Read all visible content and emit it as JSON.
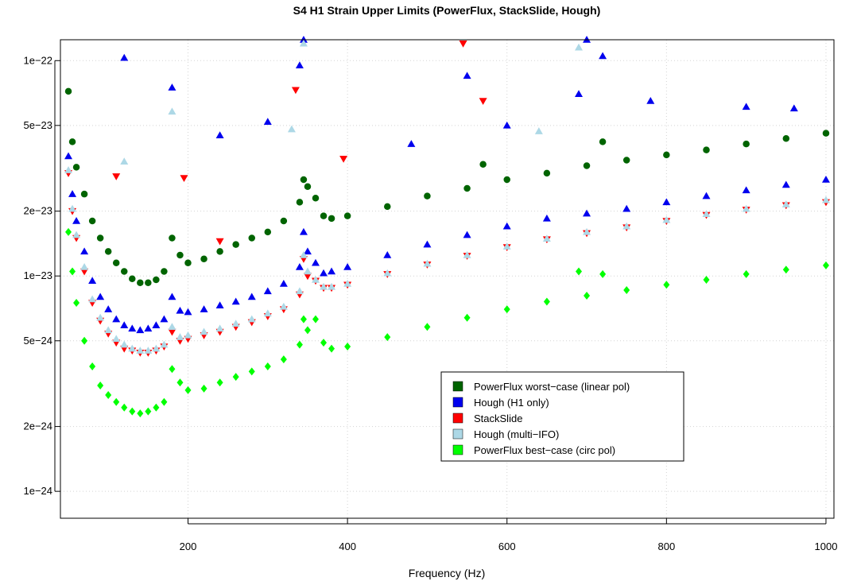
{
  "chart_data": {
    "type": "scatter",
    "title": "S4 H1 Strain Upper Limits (PowerFlux, StackSlide, Hough)",
    "xlabel": "Frequency (Hz)",
    "ylabel": "",
    "xlim": [
      40,
      1010
    ],
    "ylim": [
      7.5e-25,
      1.25e-22
    ],
    "yscale": "log",
    "grid": true,
    "legend_position": "center-right",
    "x_ticks": [
      200,
      400,
      600,
      800,
      1000
    ],
    "x_tick_labels": [
      "200",
      "400",
      "600",
      "800",
      "1000"
    ],
    "y_ticks": [
      1e-24,
      2e-24,
      5e-24,
      1e-23,
      2e-23,
      5e-23,
      1e-22
    ],
    "y_tick_labels": [
      "1e−24",
      "2e−24",
      "5e−24",
      "1e−23",
      "2e−23",
      "5e−23",
      "1e−22"
    ],
    "series": [
      {
        "name": "PowerFlux worst−case (linear pol)",
        "color": "#006400",
        "marker": "circle",
        "x": [
          50,
          55,
          60,
          70,
          80,
          90,
          100,
          110,
          120,
          130,
          140,
          150,
          160,
          170,
          180,
          190,
          200,
          220,
          240,
          260,
          280,
          300,
          320,
          340,
          345,
          350,
          360,
          370,
          380,
          400,
          450,
          500,
          550,
          600,
          650,
          700,
          750,
          800,
          850,
          900,
          950,
          1000
        ],
        "y": [
          7.2e-23,
          4.2e-23,
          3.2e-23,
          2.4e-23,
          1.8e-23,
          1.5e-23,
          1.3e-23,
          1.15e-23,
          1.05e-23,
          9.7e-24,
          9.3e-24,
          9.3e-24,
          9.6e-24,
          1.05e-23,
          1.5e-23,
          1.25e-23,
          1.15e-23,
          1.2e-23,
          1.3e-23,
          1.4e-23,
          1.5e-23,
          1.6e-23,
          1.8e-23,
          2.2e-23,
          2.8e-23,
          2.6e-23,
          2.3e-23,
          1.9e-23,
          1.85e-23,
          1.9e-23,
          2.1e-23,
          2.35e-23,
          2.55e-23,
          2.8e-23,
          3e-23,
          3.25e-23,
          3.45e-23,
          3.65e-23,
          3.85e-23,
          4.1e-23,
          4.35e-23,
          4.6e-23
        ]
      },
      {
        "name": "Hough (H1 only)",
        "color": "#0000ee",
        "marker": "triangle",
        "x": [
          50,
          55,
          60,
          70,
          80,
          90,
          100,
          110,
          120,
          130,
          140,
          150,
          160,
          170,
          180,
          190,
          200,
          220,
          240,
          260,
          280,
          300,
          320,
          340,
          345,
          350,
          360,
          370,
          380,
          400,
          450,
          500,
          550,
          600,
          650,
          700,
          750,
          800,
          850,
          900,
          950,
          1000
        ],
        "y": [
          3.6e-23,
          2.4e-23,
          1.8e-23,
          1.3e-23,
          9.5e-24,
          8e-24,
          7e-24,
          6.3e-24,
          5.9e-24,
          5.7e-24,
          5.6e-24,
          5.7e-24,
          5.9e-24,
          6.3e-24,
          8e-24,
          6.9e-24,
          6.8e-24,
          7e-24,
          7.3e-24,
          7.6e-24,
          8e-24,
          8.5e-24,
          9.2e-24,
          1.1e-23,
          1.6e-23,
          1.3e-23,
          1.15e-23,
          1.03e-23,
          1.05e-23,
          1.1e-23,
          1.25e-23,
          1.4e-23,
          1.55e-23,
          1.7e-23,
          1.85e-23,
          1.95e-23,
          2.05e-23,
          2.2e-23,
          2.35e-23,
          2.5e-23,
          2.65e-23,
          2.8e-23
        ]
      },
      {
        "name": "StackSlide",
        "color": "#ff0000",
        "marker": "triangle-down",
        "x": [
          50,
          55,
          60,
          70,
          80,
          90,
          100,
          110,
          120,
          130,
          140,
          150,
          160,
          170,
          180,
          190,
          200,
          220,
          240,
          260,
          280,
          300,
          320,
          340,
          345,
          350,
          360,
          370,
          380,
          400,
          450,
          500,
          550,
          600,
          650,
          700,
          750,
          800,
          850,
          900,
          950,
          1000
        ],
        "y": [
          3e-23,
          2e-23,
          1.5e-23,
          1.05e-23,
          7.5e-24,
          6.2e-24,
          5.4e-24,
          4.9e-24,
          4.6e-24,
          4.5e-24,
          4.4e-24,
          4.4e-24,
          4.5e-24,
          4.7e-24,
          5.5e-24,
          5e-24,
          5.1e-24,
          5.3e-24,
          5.5e-24,
          5.8e-24,
          6.1e-24,
          6.5e-24,
          7e-24,
          8.2e-24,
          1.2e-23,
          1e-23,
          9.5e-24,
          8.8e-24,
          8.8e-24,
          9.1e-24,
          1.02e-23,
          1.13e-23,
          1.24e-23,
          1.36e-23,
          1.48e-23,
          1.58e-23,
          1.68e-23,
          1.8e-23,
          1.92e-23,
          2.03e-23,
          2.13e-23,
          2.2e-23
        ]
      },
      {
        "name": "Hough (multi−IFO)",
        "color": "#add8e6",
        "marker": "triangle",
        "x": [
          50,
          55,
          60,
          70,
          80,
          90,
          100,
          110,
          120,
          130,
          140,
          150,
          160,
          170,
          180,
          190,
          200,
          220,
          240,
          260,
          280,
          300,
          320,
          340,
          345,
          350,
          360,
          370,
          380,
          400,
          450,
          500,
          550,
          600,
          650,
          700,
          750,
          800,
          850,
          900,
          950,
          1000
        ],
        "y": [
          3.1e-23,
          2.05e-23,
          1.55e-23,
          1.1e-23,
          7.8e-24,
          6.4e-24,
          5.6e-24,
          5.1e-24,
          4.8e-24,
          4.6e-24,
          4.5e-24,
          4.5e-24,
          4.6e-24,
          4.8e-24,
          5.8e-24,
          5.2e-24,
          5.3e-24,
          5.5e-24,
          5.7e-24,
          6e-24,
          6.3e-24,
          6.7e-24,
          7.2e-24,
          8.5e-24,
          1.25e-23,
          1.05e-23,
          9.6e-24,
          8.9e-24,
          8.9e-24,
          9.2e-24,
          1.03e-23,
          1.14e-23,
          1.25e-23,
          1.37e-23,
          1.49e-23,
          1.6e-23,
          1.7e-23,
          1.82e-23,
          1.94e-23,
          2.05e-23,
          2.15e-23,
          2.25e-23
        ]
      },
      {
        "name": "PowerFlux best−case (circ pol)",
        "color": "#00ff00",
        "marker": "diamond",
        "x": [
          50,
          55,
          60,
          70,
          80,
          90,
          100,
          110,
          120,
          130,
          140,
          150,
          160,
          170,
          180,
          190,
          200,
          220,
          240,
          260,
          280,
          300,
          320,
          340,
          345,
          350,
          360,
          370,
          380,
          400,
          450,
          500,
          550,
          600,
          650,
          700,
          750,
          800,
          850,
          900,
          950,
          1000
        ],
        "y": [
          1.6e-23,
          1.05e-23,
          7.5e-24,
          5e-24,
          3.8e-24,
          3.1e-24,
          2.8e-24,
          2.6e-24,
          2.45e-24,
          2.35e-24,
          2.3e-24,
          2.35e-24,
          2.45e-24,
          2.6e-24,
          3.7e-24,
          3.2e-24,
          2.95e-24,
          3e-24,
          3.2e-24,
          3.4e-24,
          3.6e-24,
          3.8e-24,
          4.1e-24,
          4.8e-24,
          6.3e-24,
          5.6e-24,
          6.3e-24,
          4.9e-24,
          4.6e-24,
          4.7e-24,
          5.2e-24,
          5.8e-24,
          6.4e-24,
          7e-24,
          7.6e-24,
          8.1e-24,
          8.6e-24,
          9.1e-24,
          9.6e-24,
          1.02e-23,
          1.07e-23,
          1.12e-23
        ]
      }
    ],
    "outliers": [
      {
        "series": 1,
        "x": 120,
        "y": 1.03e-22
      },
      {
        "series": 1,
        "x": 180,
        "y": 7.5e-23
      },
      {
        "series": 1,
        "x": 240,
        "y": 4.5e-23
      },
      {
        "series": 1,
        "x": 300,
        "y": 5.2e-23
      },
      {
        "series": 1,
        "x": 340,
        "y": 9.5e-23
      },
      {
        "series": 1,
        "x": 345,
        "y": 1.25e-22
      },
      {
        "series": 1,
        "x": 550,
        "y": 8.5e-23
      },
      {
        "series": 1,
        "x": 600,
        "y": 5e-23
      },
      {
        "series": 1,
        "x": 690,
        "y": 7e-23
      },
      {
        "series": 1,
        "x": 700,
        "y": 1.25e-22
      },
      {
        "series": 1,
        "x": 720,
        "y": 1.05e-22
      },
      {
        "series": 1,
        "x": 780,
        "y": 6.5e-23
      },
      {
        "series": 1,
        "x": 900,
        "y": 6.1e-23
      },
      {
        "series": 1,
        "x": 960,
        "y": 6e-23
      },
      {
        "series": 1,
        "x": 480,
        "y": 4.1e-23
      },
      {
        "series": 2,
        "x": 110,
        "y": 2.9e-23
      },
      {
        "series": 2,
        "x": 195,
        "y": 2.85e-23
      },
      {
        "series": 2,
        "x": 335,
        "y": 7.3e-23
      },
      {
        "series": 2,
        "x": 395,
        "y": 3.5e-23
      },
      {
        "series": 2,
        "x": 545,
        "y": 1.2e-22
      },
      {
        "series": 2,
        "x": 570,
        "y": 6.5e-23
      },
      {
        "series": 2,
        "x": 240,
        "y": 1.45e-23
      },
      {
        "series": 3,
        "x": 120,
        "y": 3.4e-23
      },
      {
        "series": 3,
        "x": 180,
        "y": 5.8e-23
      },
      {
        "series": 3,
        "x": 345,
        "y": 1.2e-22
      },
      {
        "series": 3,
        "x": 690,
        "y": 1.15e-22
      },
      {
        "series": 3,
        "x": 640,
        "y": 4.7e-23
      },
      {
        "series": 3,
        "x": 330,
        "y": 4.8e-23
      },
      {
        "series": 0,
        "x": 720,
        "y": 4.2e-23
      },
      {
        "series": 0,
        "x": 570,
        "y": 3.3e-23
      },
      {
        "series": 4,
        "x": 690,
        "y": 1.05e-23
      },
      {
        "series": 4,
        "x": 720,
        "y": 1.02e-23
      }
    ]
  }
}
